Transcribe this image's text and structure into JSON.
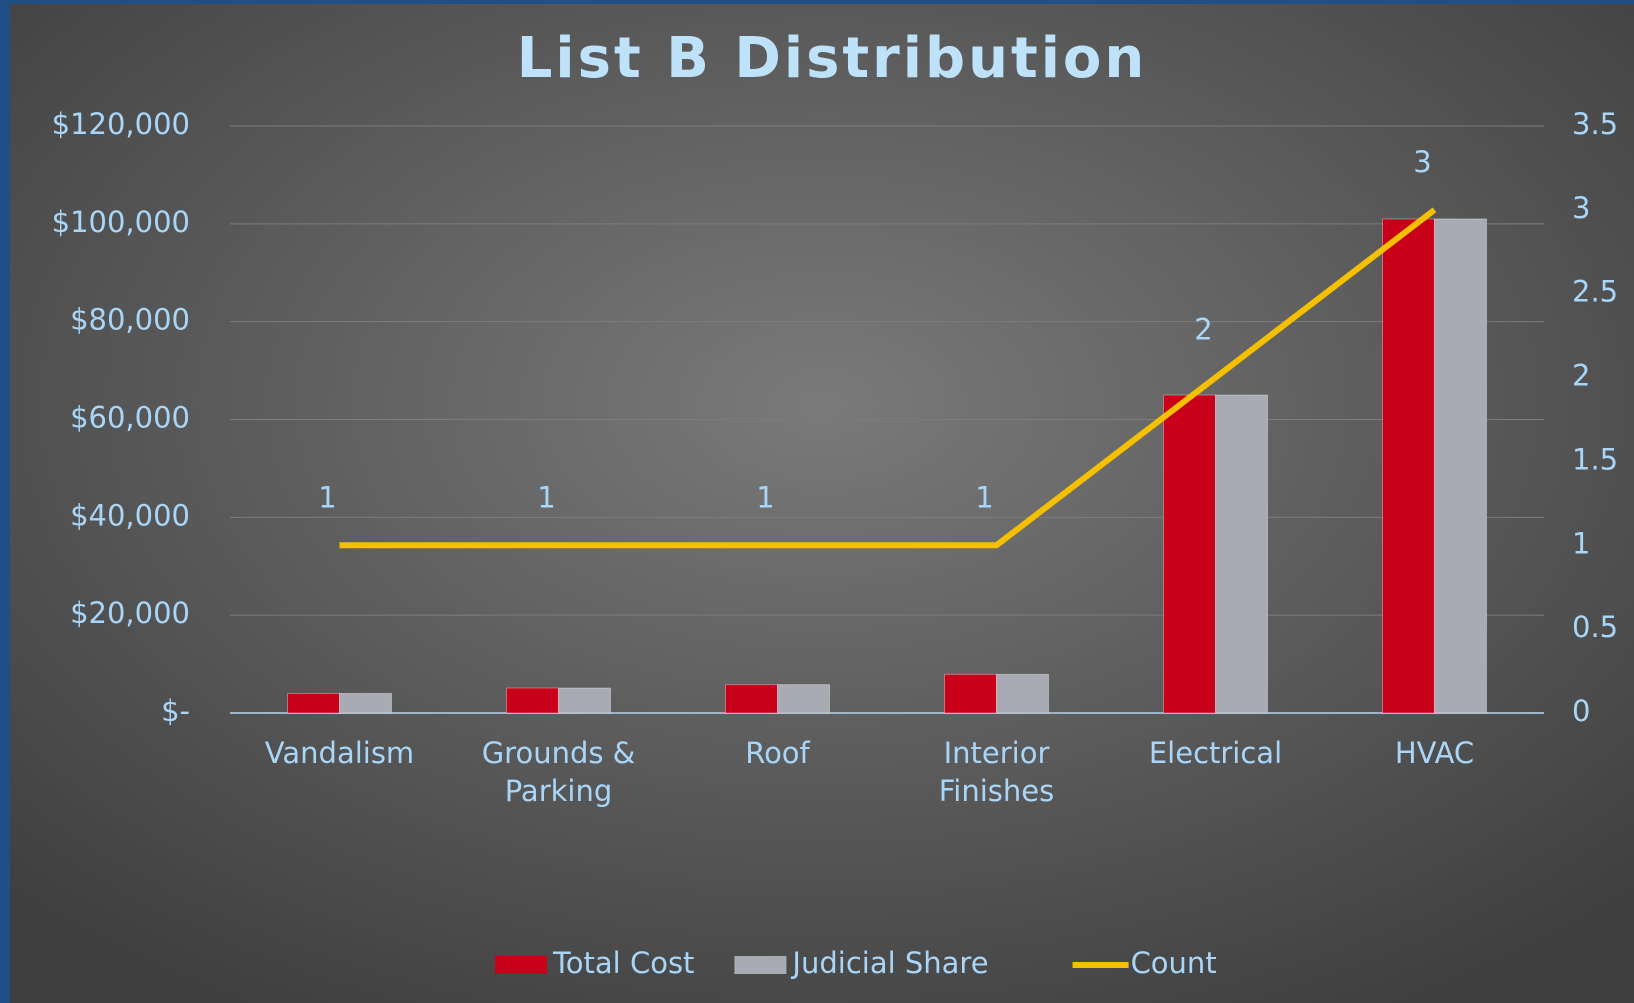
{
  "chart_data": {
    "type": "bar",
    "title": "List B Distribution",
    "categories": [
      "Vandalism",
      "Grounds & Parking",
      "Roof",
      "Interior Finishes",
      "Electrical",
      "HVAC"
    ],
    "series": [
      {
        "name": "Total Cost",
        "color": "#c8001a",
        "values": [
          4000,
          5100,
          5800,
          7900,
          65000,
          101000
        ]
      },
      {
        "name": "Judicial Share",
        "color": "#a9abb4",
        "values": [
          4000,
          5100,
          5800,
          7900,
          65000,
          101000
        ]
      },
      {
        "name": "Count",
        "color": "#f5c000",
        "axis": "y2",
        "values": [
          1,
          1,
          1,
          1,
          2,
          3
        ]
      }
    ],
    "ylim": [
      0,
      120000
    ],
    "yticks": [
      {
        "value": 0,
        "label": "$-"
      },
      {
        "value": 20000,
        "label": "$20,000"
      },
      {
        "value": 40000,
        "label": "$40,000"
      },
      {
        "value": 60000,
        "label": "$60,000"
      },
      {
        "value": 80000,
        "label": "$80,000"
      },
      {
        "value": 100000,
        "label": "$100,000"
      },
      {
        "value": 120000,
        "label": "$120,000"
      }
    ],
    "y2lim": [
      0,
      3.5
    ],
    "y2ticks": [
      0,
      0.5,
      1,
      1.5,
      2,
      2.5,
      3,
      3.5
    ],
    "grid": true
  }
}
